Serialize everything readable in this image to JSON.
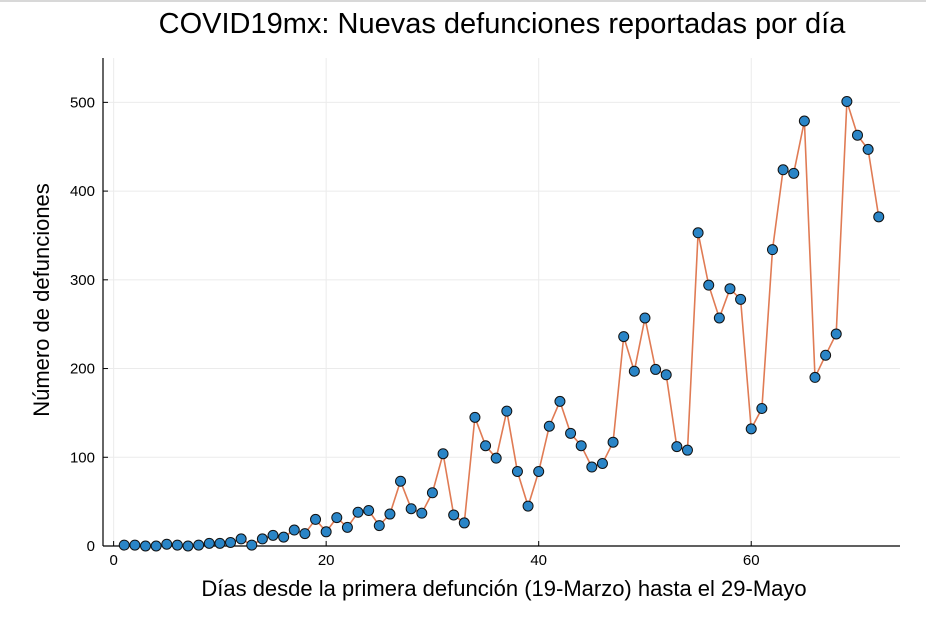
{
  "chart_data": {
    "type": "line",
    "title": "COVID19mx: Nuevas defunciones reportadas por día",
    "xlabel": "Días desde la primera defunción (19-Marzo) hasta el 29-Mayo",
    "ylabel": "Número de defunciones",
    "xlim": [
      -1,
      74
    ],
    "ylim": [
      0,
      550
    ],
    "xticks": [
      0,
      20,
      40,
      60
    ],
    "yticks": [
      0,
      100,
      200,
      300,
      400,
      500
    ],
    "grid": true,
    "legend": "none",
    "line_color": "#e07b54",
    "marker_color": "#2a85c7",
    "series": [
      {
        "x": [
          1,
          2,
          3,
          4,
          5,
          6,
          7,
          8,
          9,
          10,
          11,
          12,
          13,
          14,
          15,
          16,
          17,
          18,
          19,
          20,
          21,
          22,
          23,
          24,
          25,
          26,
          27,
          28,
          29,
          30,
          31,
          32,
          33,
          34,
          35,
          36,
          37,
          38,
          39,
          40,
          41,
          42,
          43,
          44,
          45,
          46,
          47,
          48,
          49,
          50,
          51,
          52,
          53,
          54,
          55,
          56,
          57,
          58,
          59,
          60,
          61,
          62,
          63,
          64,
          65,
          66,
          67,
          68,
          69,
          70,
          71,
          72
        ],
        "values": [
          1,
          1,
          0,
          0,
          2,
          1,
          0,
          1,
          3,
          3,
          4,
          8,
          1,
          8,
          12,
          10,
          18,
          14,
          30,
          16,
          32,
          21,
          38,
          40,
          23,
          36,
          73,
          42,
          37,
          60,
          104,
          35,
          26,
          145,
          113,
          99,
          152,
          84,
          45,
          84,
          135,
          163,
          127,
          113,
          89,
          93,
          117,
          236,
          197,
          257,
          199,
          193,
          112,
          108,
          353,
          294,
          257,
          290,
          278,
          132,
          155,
          334,
          424,
          420,
          479,
          190,
          215,
          239,
          501,
          463,
          447,
          371
        ]
      }
    ]
  }
}
